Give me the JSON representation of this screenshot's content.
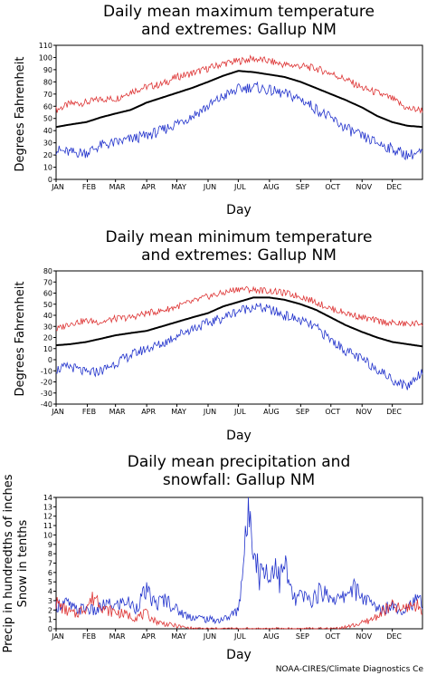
{
  "credit": "NOAA-CIRES/Climate Diagnostics Ce",
  "colors": {
    "max_series": "#dd3333",
    "mean_series": "#000000",
    "min_series": "#2233cc",
    "frame": "#000000"
  },
  "chart_data": [
    {
      "type": "line",
      "title_lines": [
        "Daily mean maximum temperature",
        "and extremes: Gallup NM"
      ],
      "xlabel": "Day",
      "ylabel": "Degrees Fahrenheit",
      "x_tick_labels": [
        "JAN",
        "FEB",
        "MAR",
        "APR",
        "MAY",
        "JUN",
        "JUL",
        "AUG",
        "SEP",
        "OCT",
        "NOV",
        "DEC"
      ],
      "y_ticks": [
        0,
        10,
        20,
        30,
        40,
        50,
        60,
        70,
        80,
        90,
        100,
        110
      ],
      "ylim": [
        0,
        110
      ],
      "xlim": [
        1,
        365
      ],
      "grid": false,
      "legend": "none",
      "series": [
        {
          "role": "record-high",
          "color": "#dd3333",
          "x": [
            1,
            15,
            31,
            46,
            60,
            75,
            91,
            106,
            121,
            136,
            152,
            167,
            182,
            197,
            213,
            228,
            244,
            259,
            274,
            289,
            305,
            320,
            335,
            350,
            365
          ],
          "y": [
            57,
            62,
            63,
            66,
            66,
            72,
            76,
            78,
            84,
            87,
            91,
            95,
            97,
            99,
            97,
            94,
            93,
            91,
            87,
            82,
            75,
            71,
            66,
            58,
            57
          ]
        },
        {
          "role": "mean",
          "color": "#000000",
          "x": [
            1,
            15,
            31,
            46,
            60,
            75,
            91,
            106,
            121,
            136,
            152,
            167,
            182,
            197,
            213,
            228,
            244,
            259,
            274,
            289,
            305,
            320,
            335,
            350,
            365
          ],
          "y": [
            43,
            45,
            47,
            51,
            54,
            57,
            63,
            67,
            71,
            75,
            80,
            85,
            89,
            88,
            86,
            84,
            80,
            75,
            70,
            65,
            59,
            52,
            47,
            44,
            43
          ]
        },
        {
          "role": "record-low",
          "color": "#2233cc",
          "x": [
            1,
            15,
            31,
            46,
            60,
            75,
            91,
            106,
            121,
            136,
            152,
            167,
            182,
            197,
            213,
            228,
            244,
            259,
            274,
            289,
            305,
            320,
            335,
            350,
            365
          ],
          "y": [
            24,
            22,
            22,
            28,
            30,
            33,
            36,
            40,
            46,
            52,
            60,
            68,
            74,
            76,
            73,
            70,
            66,
            58,
            50,
            42,
            35,
            30,
            25,
            20,
            22
          ]
        }
      ]
    },
    {
      "type": "line",
      "title_lines": [
        "Daily mean minimum temperature",
        "and extremes: Gallup NM"
      ],
      "xlabel": "Day",
      "ylabel": "Degrees Fahrenheit",
      "x_tick_labels": [
        "JAN",
        "FEB",
        "MAR",
        "APR",
        "MAY",
        "JUN",
        "JUL",
        "AUG",
        "SEP",
        "OCT",
        "NOV",
        "DEC"
      ],
      "y_ticks": [
        -40,
        -30,
        -20,
        -10,
        0,
        10,
        20,
        30,
        40,
        50,
        60,
        70,
        80
      ],
      "ylim": [
        -40,
        80
      ],
      "xlim": [
        1,
        365
      ],
      "grid": false,
      "legend": "none",
      "series": [
        {
          "role": "record-high",
          "color": "#dd3333",
          "x": [
            1,
            15,
            31,
            46,
            60,
            75,
            91,
            106,
            121,
            136,
            152,
            167,
            182,
            197,
            213,
            228,
            244,
            259,
            274,
            289,
            305,
            320,
            335,
            350,
            365
          ],
          "y": [
            27,
            33,
            35,
            34,
            37,
            38,
            42,
            44,
            48,
            52,
            57,
            60,
            64,
            63,
            62,
            60,
            57,
            52,
            46,
            42,
            38,
            35,
            33,
            32,
            33
          ]
        },
        {
          "role": "mean",
          "color": "#000000",
          "x": [
            1,
            15,
            31,
            46,
            60,
            75,
            91,
            106,
            121,
            136,
            152,
            167,
            182,
            197,
            213,
            228,
            244,
            259,
            274,
            289,
            305,
            320,
            335,
            350,
            365
          ],
          "y": [
            13,
            14,
            16,
            19,
            22,
            24,
            26,
            30,
            34,
            38,
            42,
            48,
            52,
            56,
            56,
            54,
            50,
            45,
            38,
            31,
            25,
            20,
            16,
            14,
            12
          ]
        },
        {
          "role": "record-low",
          "color": "#2233cc",
          "x": [
            1,
            15,
            31,
            46,
            60,
            75,
            91,
            106,
            121,
            136,
            152,
            167,
            182,
            197,
            213,
            228,
            244,
            259,
            274,
            289,
            305,
            320,
            335,
            350,
            365
          ],
          "y": [
            -9,
            -6,
            -12,
            -10,
            -3,
            4,
            10,
            14,
            22,
            28,
            33,
            38,
            44,
            48,
            45,
            40,
            35,
            29,
            18,
            8,
            0,
            -8,
            -18,
            -24,
            -10
          ]
        }
      ]
    },
    {
      "type": "line",
      "title_lines": [
        "Daily mean precipitation and",
        "snowfall: Gallup NM"
      ],
      "xlabel": "Day",
      "ylabel_lines": [
        "Precip in hundredths of inches",
        "Snow in tenths"
      ],
      "x_tick_labels": [
        "JAN",
        "FEB",
        "MAR",
        "APR",
        "MAY",
        "JUN",
        "JUL",
        "AUG",
        "SEP",
        "OCT",
        "NOV",
        "DEC"
      ],
      "y_ticks": [
        0,
        1,
        2,
        3,
        4,
        5,
        6,
        7,
        8,
        9,
        10,
        11,
        12,
        13,
        14
      ],
      "ylim": [
        0,
        14
      ],
      "xlim": [
        1,
        365
      ],
      "grid": false,
      "legend": "none",
      "series": [
        {
          "role": "precipitation",
          "color": "#2233cc",
          "x": [
            1,
            10,
            20,
            31,
            40,
            50,
            60,
            70,
            80,
            90,
            100,
            110,
            121,
            131,
            141,
            152,
            162,
            172,
            182,
            188,
            193,
            198,
            203,
            208,
            213,
            218,
            223,
            228,
            233,
            238,
            244,
            254,
            264,
            274,
            284,
            294,
            305,
            315,
            325,
            335,
            345,
            355,
            365
          ],
          "y": [
            2.5,
            2.8,
            2.0,
            2.2,
            1.8,
            2.6,
            2.4,
            3.0,
            2.2,
            4.0,
            2.6,
            3.2,
            2.0,
            1.4,
            1.2,
            1.0,
            0.9,
            1.2,
            2.0,
            8.0,
            13.0,
            9.0,
            5.5,
            7.0,
            5.0,
            7.5,
            5.0,
            7.0,
            4.5,
            3.0,
            3.5,
            3.0,
            4.0,
            3.5,
            3.0,
            4.5,
            3.5,
            2.5,
            2.0,
            2.6,
            2.0,
            2.8,
            3.0
          ]
        },
        {
          "role": "snowfall",
          "color": "#dd3333",
          "x": [
            1,
            10,
            20,
            31,
            40,
            50,
            60,
            70,
            80,
            90,
            100,
            110,
            121,
            131,
            141,
            152,
            213,
            274,
            290,
            305,
            315,
            325,
            335,
            345,
            355,
            365
          ],
          "y": [
            2.8,
            2.0,
            1.5,
            2.4,
            3.5,
            2.0,
            1.8,
            1.5,
            1.2,
            1.6,
            0.8,
            0.5,
            0.3,
            0.1,
            0,
            0,
            0,
            0,
            0.2,
            0.6,
            1.0,
            1.8,
            2.4,
            2.0,
            2.6,
            2.2
          ]
        }
      ]
    }
  ]
}
